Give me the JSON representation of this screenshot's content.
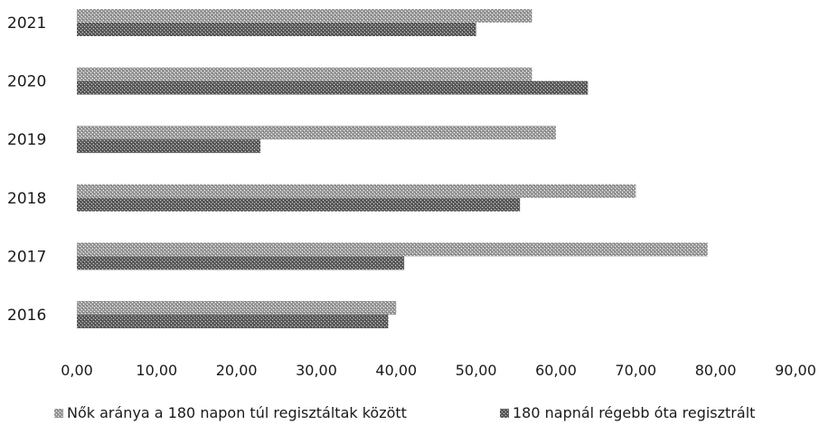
{
  "chart_data": {
    "type": "bar",
    "orientation": "horizontal",
    "categories": [
      "2021",
      "2020",
      "2019",
      "2018",
      "2017",
      "2016"
    ],
    "series": [
      {
        "name": "Nők aránya a 180 napon túl regisztáltak között",
        "values": [
          57.0,
          57.0,
          60.0,
          70.0,
          79.0,
          40.0
        ]
      },
      {
        "name": "180 napnál régebb óta regisztrált",
        "values": [
          50.0,
          64.0,
          23.0,
          55.5,
          41.0,
          39.0
        ]
      }
    ],
    "x_ticks": [
      "0,00",
      "10,00",
      "20,00",
      "30,00",
      "40,00",
      "50,00",
      "60,00",
      "70,00",
      "80,00",
      "90,00"
    ],
    "xlim": [
      0,
      90
    ],
    "grid": false,
    "legend_position": "bottom",
    "colors": {
      "series_1": "#9a9a9a",
      "series_2": "#5e5e5e"
    }
  }
}
